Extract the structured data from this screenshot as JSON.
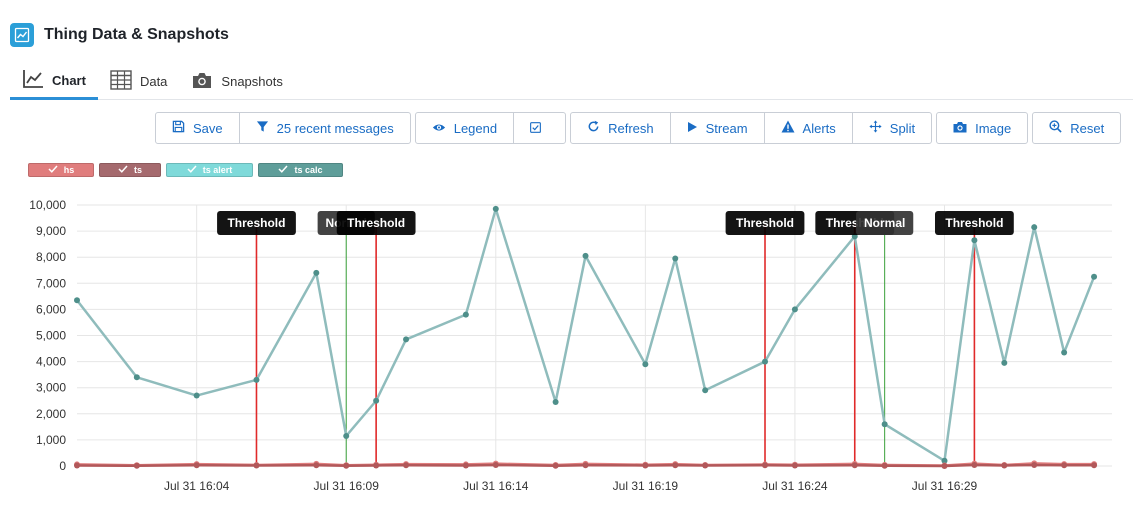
{
  "header": {
    "title": "Thing Data & Snapshots",
    "icon": "line-chart-icon"
  },
  "tabs": [
    {
      "label": "Chart",
      "icon": "chart-icon",
      "active": true
    },
    {
      "label": "Data",
      "icon": "table-icon",
      "active": false
    },
    {
      "label": "Snapshots",
      "icon": "camera-icon",
      "active": false
    }
  ],
  "toolbar": {
    "save_label": "Save",
    "messages_label": "25 recent messages",
    "legend_label": "Legend",
    "refresh_label": "Refresh",
    "stream_label": "Stream",
    "alerts_label": "Alerts",
    "split_label": "Split",
    "image_label": "Image",
    "reset_label": "Reset"
  },
  "legend": [
    {
      "name": "hs",
      "color": "#e07d7d"
    },
    {
      "name": "ts",
      "color": "#a56a6e"
    },
    {
      "name": "ts alert",
      "color": "#7fdada"
    },
    {
      "name": "ts calc",
      "color": "#5f9e9a"
    }
  ],
  "chart_data": {
    "type": "line",
    "x_axis_ticks": [
      "Jul 31 16:04",
      "Jul 31 16:09",
      "Jul 31 16:14",
      "Jul 31 16:19",
      "Jul 31 16:24",
      "Jul 31 16:29"
    ],
    "x_tick_minutes": [
      4,
      9,
      14,
      19,
      24,
      29
    ],
    "x_range_minutes": [
      0,
      34.6
    ],
    "y_ticks": [
      "0",
      "1,000",
      "2,000",
      "3,000",
      "4,000",
      "5,000",
      "6,000",
      "7,000",
      "8,000",
      "9,000",
      "10,000"
    ],
    "ylim": [
      0,
      10000
    ],
    "grid": true,
    "series": [
      {
        "name": "ts calc",
        "color": "#8fbcbc",
        "x": [
          0,
          2,
          4,
          6,
          8,
          9,
          10,
          11,
          13,
          14,
          16,
          17,
          19,
          20,
          21,
          23,
          24,
          26,
          27,
          29,
          30,
          31,
          32,
          33,
          34
        ],
        "y": [
          6350,
          3400,
          2700,
          3300,
          7400,
          1150,
          2500,
          4850,
          5800,
          9850,
          2450,
          8050,
          3900,
          7950,
          2900,
          4000,
          6000,
          8800,
          1600,
          200,
          8650,
          3950,
          9150,
          4350,
          7250
        ]
      },
      {
        "name": "hs",
        "color": "#e07d7d",
        "x": [
          0,
          2,
          4,
          6,
          8,
          9,
          10,
          11,
          13,
          14,
          16,
          17,
          19,
          20,
          21,
          23,
          24,
          26,
          27,
          29,
          30,
          31,
          32,
          33,
          34
        ],
        "y": [
          60,
          30,
          70,
          40,
          80,
          30,
          50,
          70,
          60,
          90,
          40,
          80,
          50,
          70,
          40,
          60,
          50,
          80,
          40,
          20,
          90,
          40,
          100,
          70,
          70
        ]
      },
      {
        "name": "ts",
        "color": "#b2585a",
        "x": [
          0,
          2,
          4,
          6,
          8,
          9,
          10,
          11,
          13,
          14,
          16,
          17,
          19,
          20,
          21,
          23,
          24,
          26,
          27,
          29,
          30,
          31,
          32,
          33,
          34
        ],
        "y": [
          20,
          10,
          30,
          20,
          30,
          10,
          20,
          30,
          20,
          40,
          10,
          30,
          20,
          30,
          20,
          30,
          20,
          30,
          10,
          0,
          40,
          20,
          40,
          30,
          30
        ]
      }
    ],
    "annotations": [
      {
        "label": "Threshold",
        "x": 6,
        "color": "#e02a2a"
      },
      {
        "label": "Normal",
        "x": 9,
        "color": "#3aa03a"
      },
      {
        "label": "Threshold",
        "x": 10,
        "color": "#e02a2a"
      },
      {
        "label": "Threshold",
        "x": 23,
        "color": "#e02a2a"
      },
      {
        "label": "Threshold",
        "x": 26,
        "color": "#e02a2a"
      },
      {
        "label": "Normal",
        "x": 27,
        "color": "#3aa03a"
      },
      {
        "label": "Threshold",
        "x": 30,
        "color": "#e02a2a"
      }
    ]
  }
}
